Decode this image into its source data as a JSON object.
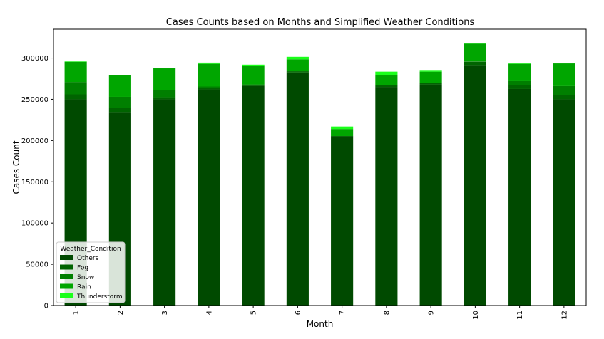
{
  "chart_data": {
    "type": "bar",
    "stacked": true,
    "title": "Cases Counts based on Months and Simplified Weather Conditions",
    "xlabel": "Month",
    "ylabel": "Cases Count",
    "ylim": [
      0,
      335000
    ],
    "yticks": [
      0,
      50000,
      100000,
      150000,
      200000,
      250000,
      300000
    ],
    "grid": false,
    "legend": {
      "title": "Weather_Condition",
      "placement": "lower-left"
    },
    "categories": [
      "1",
      "2",
      "3",
      "4",
      "5",
      "6",
      "7",
      "8",
      "9",
      "10",
      "11",
      "12"
    ],
    "series": [
      {
        "name": "Others",
        "color": "#004a00",
        "values": [
          250000,
          234500,
          250000,
          262000,
          266000,
          282500,
          205000,
          265000,
          268000,
          291500,
          262500,
          250000
        ]
      },
      {
        "name": "Fog",
        "color": "#006400",
        "values": [
          6000,
          5500,
          2500,
          2000,
          1500,
          1500,
          500,
          2000,
          2000,
          4000,
          4500,
          5000
        ]
      },
      {
        "name": "Snow",
        "color": "#007f00",
        "values": [
          15000,
          13000,
          9000,
          1500,
          500,
          0,
          0,
          0,
          0,
          500,
          5000,
          11000
        ]
      },
      {
        "name": "Rain",
        "color": "#00a600",
        "values": [
          24500,
          26000,
          26000,
          27500,
          22500,
          14500,
          8500,
          12000,
          13500,
          21500,
          21000,
          27500
        ]
      },
      {
        "name": "Thunderstorm",
        "color": "#1aff1a",
        "values": [
          500,
          500,
          500,
          1500,
          1500,
          3000,
          3000,
          4500,
          2000,
          500,
          500,
          500
        ]
      }
    ]
  }
}
